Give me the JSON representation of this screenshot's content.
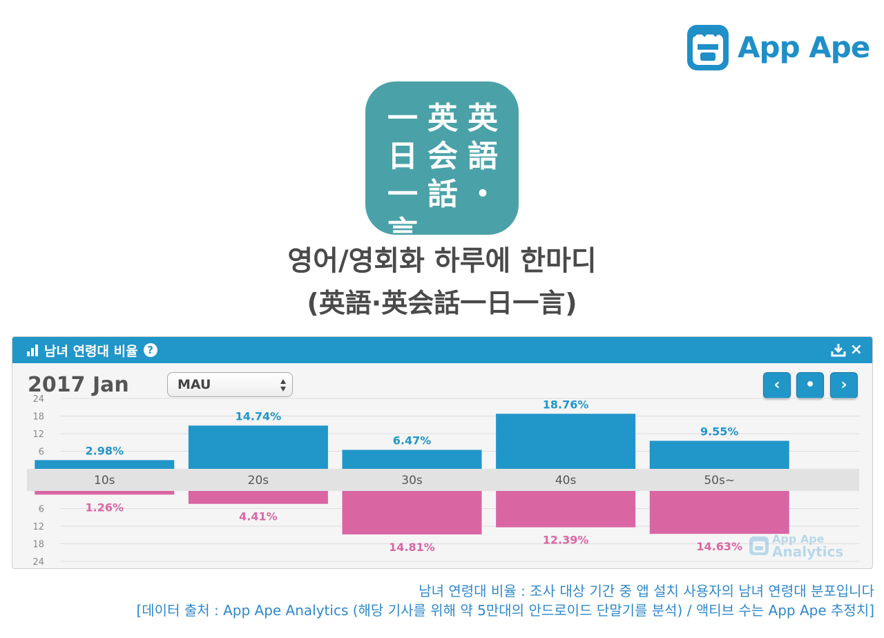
{
  "brand": {
    "name": "App Ape"
  },
  "app": {
    "icon_columns": [
      [
        "一",
        "日",
        "一",
        "言"
      ],
      [
        "英",
        "会",
        "話"
      ],
      [
        "英",
        "語",
        "・"
      ]
    ],
    "icon_color": "#4aa2a8",
    "title": "영어/영회화 하루에 한마디",
    "subtitle": "(英語·英会話一日一言)"
  },
  "widget": {
    "title": "남녀 연령대 비율",
    "help": "?",
    "close": "×",
    "period": "2017 Jan",
    "metric": "MAU",
    "nav": {
      "prev": "‹",
      "now": "•",
      "next": "›"
    },
    "watermark": [
      "App Ape",
      "Analytics"
    ],
    "accent": "#2196c9"
  },
  "chart_data": {
    "type": "bar",
    "categories": [
      "10s",
      "20s",
      "30s",
      "40s",
      "50s~"
    ],
    "series": [
      {
        "values": [
          2.98,
          14.74,
          6.47,
          18.76,
          9.55
        ],
        "labels": [
          "2.98%",
          "14.74%",
          "6.47%",
          "18.76%",
          "9.55%"
        ],
        "color": "#2196c9"
      },
      {
        "values": [
          1.26,
          4.41,
          14.81,
          12.39,
          14.63
        ],
        "labels": [
          "1.26%",
          "4.41%",
          "14.81%",
          "12.39%",
          "14.63%"
        ],
        "color": "#d966a3"
      }
    ],
    "ylim": [
      0,
      24
    ],
    "yticks": [
      "6",
      "12",
      "18",
      "24"
    ],
    "grid": true
  },
  "footer": {
    "line1": "남녀 연령대 비율 : 조사 대상 기간 중 앱 설치 사용자의 남녀 연령대 분포입니다",
    "line2": "[데이터 출처 : App Ape Analytics (해당 기사를 위해 약 5만대의 안드로이드 단말기를 분석) / 액티브 수는 App Ape 추정치]"
  }
}
